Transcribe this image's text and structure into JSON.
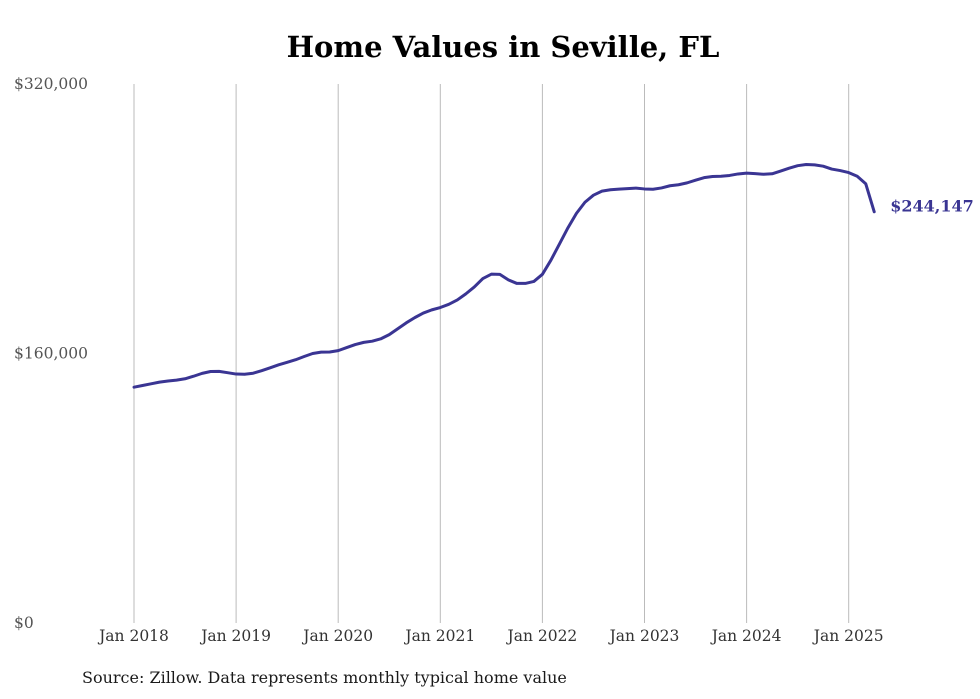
{
  "title": "Home Values in Seville, FL",
  "source": "Source: Zillow. Data represents monthly typical home value",
  "colors": {
    "line": "#3a3593",
    "grid": "#bbbbbb",
    "text": "#333333"
  },
  "chart_data": {
    "type": "line",
    "title": "Home Values in Seville, FL",
    "xlabel": "",
    "ylabel": "",
    "ylim": [
      0,
      320000
    ],
    "yticks": [
      0,
      160000,
      320000
    ],
    "ytick_labels": [
      "$0",
      "$160,000",
      "$320,000"
    ],
    "xticks": [
      "2018-01",
      "2019-01",
      "2020-01",
      "2021-01",
      "2022-01",
      "2023-01",
      "2024-01",
      "2025-01"
    ],
    "xtick_labels": [
      "Jan 2018",
      "Jan 2019",
      "Jan 2020",
      "Jan 2021",
      "Jan 2022",
      "Jan 2023",
      "Jan 2024",
      "Jan 2025"
    ],
    "grid": "vertical",
    "end_label": "$244,147",
    "series": [
      {
        "x": [
          "2018-01",
          "2018-02",
          "2018-03",
          "2018-04",
          "2018-05",
          "2018-06",
          "2018-07",
          "2018-08",
          "2018-09",
          "2018-10",
          "2018-11",
          "2018-12",
          "2019-01",
          "2019-02",
          "2019-03",
          "2019-04",
          "2019-05",
          "2019-06",
          "2019-07",
          "2019-08",
          "2019-09",
          "2019-10",
          "2019-11",
          "2019-12",
          "2020-01",
          "2020-02",
          "2020-03",
          "2020-04",
          "2020-05",
          "2020-06",
          "2020-07",
          "2020-08",
          "2020-09",
          "2020-10",
          "2020-11",
          "2020-12",
          "2021-01",
          "2021-02",
          "2021-03",
          "2021-04",
          "2021-05",
          "2021-06",
          "2021-07",
          "2021-08",
          "2021-09",
          "2021-10",
          "2021-11",
          "2021-12",
          "2022-01",
          "2022-02",
          "2022-03",
          "2022-04",
          "2022-05",
          "2022-06",
          "2022-07",
          "2022-08",
          "2022-09",
          "2022-10",
          "2022-11",
          "2022-12",
          "2023-01",
          "2023-02",
          "2023-03",
          "2023-04",
          "2023-05",
          "2023-06",
          "2023-07",
          "2023-08",
          "2023-09",
          "2023-10",
          "2023-11",
          "2023-12",
          "2024-01",
          "2024-02",
          "2024-03",
          "2024-04",
          "2024-05",
          "2024-06",
          "2024-07",
          "2024-08",
          "2024-09",
          "2024-10",
          "2024-11",
          "2024-12",
          "2025-01",
          "2025-02",
          "2025-03",
          "2025-04"
        ],
        "values": [
          140000,
          141000,
          142000,
          143000,
          143700,
          144200,
          145000,
          146500,
          148200,
          149300,
          149400,
          148600,
          147800,
          147700,
          148300,
          149800,
          151500,
          153300,
          154800,
          156300,
          158200,
          160000,
          160800,
          160900,
          161700,
          163500,
          165300,
          166600,
          167300,
          168700,
          171200,
          174700,
          178200,
          181300,
          184000,
          185900,
          187300,
          189200,
          191800,
          195400,
          199500,
          204500,
          207100,
          207000,
          203700,
          201600,
          201600,
          202800,
          207000,
          215400,
          225000,
          234600,
          243200,
          249800,
          254000,
          256400,
          257200,
          257600,
          257900,
          258200,
          257700,
          257500,
          258300,
          259600,
          260200,
          261300,
          262900,
          264400,
          265100,
          265200,
          265700,
          266600,
          267100,
          266800,
          266400,
          266700,
          268300,
          270000,
          271500,
          272200,
          272000,
          271200,
          269500,
          268600,
          267400,
          265200,
          260800,
          244147
        ]
      }
    ]
  }
}
